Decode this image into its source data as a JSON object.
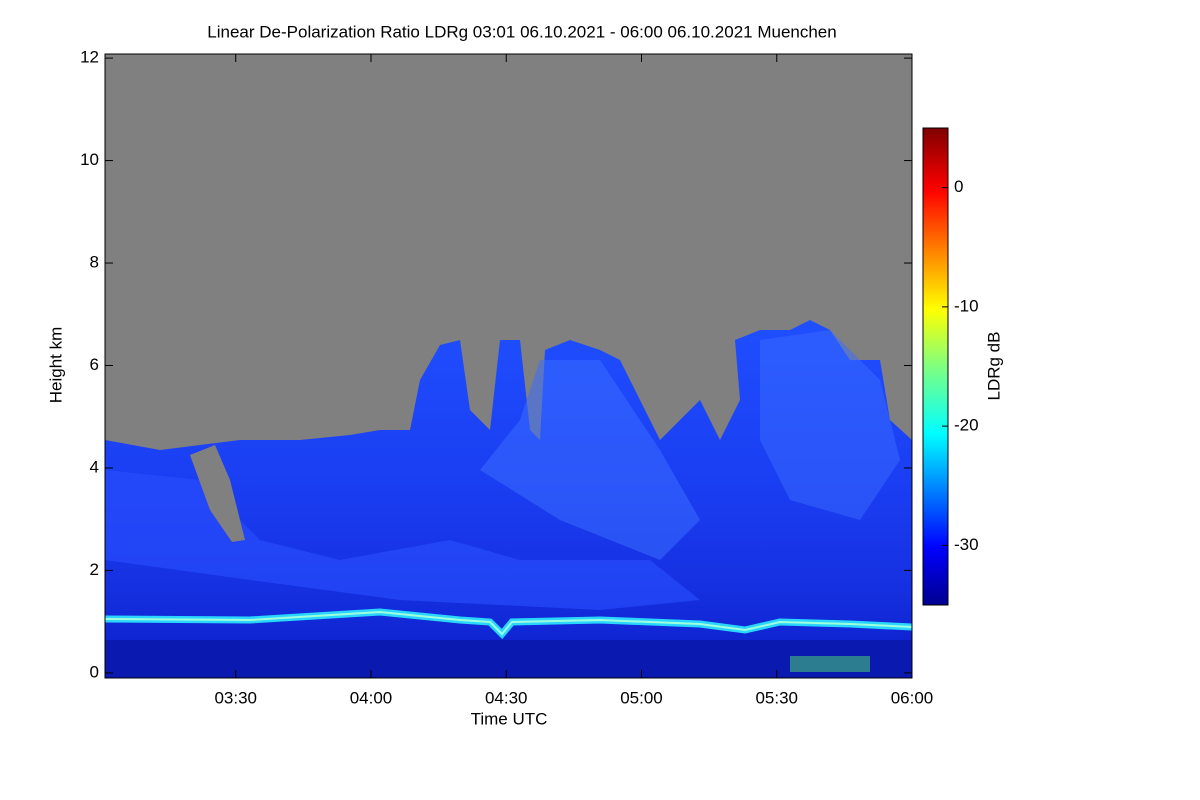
{
  "chart_data": {
    "type": "heatmap",
    "title": "Linear De-Polarization Ratio LDRg   03:01 06.10.2021 - 06:00 06.10.2021 Muenchen",
    "x_label": "Time UTC",
    "y_label": "Height km",
    "xlim": [
      3.0167,
      6.0
    ],
    "xticks": [
      {
        "value": 3.5,
        "label": "03:30"
      },
      {
        "value": 4.0,
        "label": "04:00"
      },
      {
        "value": 4.5,
        "label": "04:30"
      },
      {
        "value": 5.0,
        "label": "05:00"
      },
      {
        "value": 5.5,
        "label": "05:30"
      },
      {
        "value": 6.0,
        "label": "06:00"
      }
    ],
    "ylim": [
      -0.1,
      12.08
    ],
    "yticks": [
      0,
      2,
      4,
      6,
      8,
      10,
      12
    ],
    "colorbar": {
      "label": "LDRg dB",
      "lim": [
        -35,
        5
      ],
      "ticks": [
        -30,
        -20,
        -10,
        0
      ]
    }
  }
}
